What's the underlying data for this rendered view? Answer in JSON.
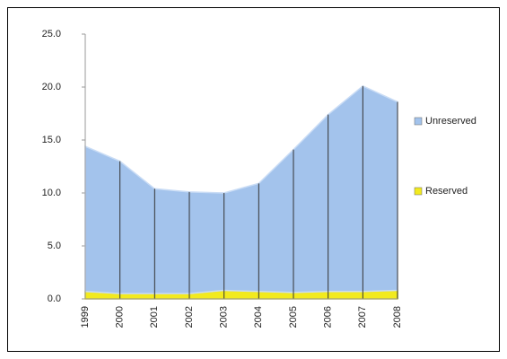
{
  "chart_data": {
    "type": "stacked_area",
    "categories": [
      "1999",
      "2000",
      "2001",
      "2002",
      "2003",
      "2004",
      "2005",
      "2006",
      "2007",
      "2008"
    ],
    "series": [
      {
        "name": "Reserved",
        "color": "#f2ea1e",
        "values": [
          0.7,
          0.5,
          0.5,
          0.5,
          0.8,
          0.7,
          0.6,
          0.7,
          0.7,
          0.8
        ]
      },
      {
        "name": "Unreserved",
        "color": "#a3c3ec",
        "values": [
          13.7,
          12.5,
          9.9,
          9.6,
          9.2,
          10.2,
          13.5,
          16.7,
          19.4,
          17.8
        ]
      }
    ],
    "ylim": [
      0,
      25
    ],
    "yticks": [
      {
        "value": 0,
        "label": "0.0"
      },
      {
        "value": 5,
        "label": "5.0"
      },
      {
        "value": 10,
        "label": "10.0"
      },
      {
        "value": 15,
        "label": "15.0"
      },
      {
        "value": 20,
        "label": "20.0"
      },
      {
        "value": 25,
        "label": "25.0"
      }
    ],
    "legend": "right"
  }
}
